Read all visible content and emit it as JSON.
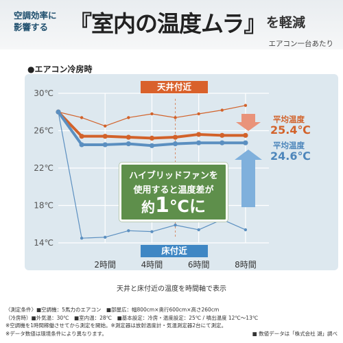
{
  "header": {
    "intro_line1": "空調効率に",
    "intro_line2": "影響する",
    "headline": "『室内の温度ムラ』",
    "headline_suffix": "を軽減",
    "unit_note": "エアコン一台あたり"
  },
  "section_title": "●エアコン冷房時",
  "chart_data": {
    "type": "line",
    "y_unit": "℃",
    "ylim": [
      14,
      30
    ],
    "y_ticks": [
      "30℃",
      "26℃",
      "22℃",
      "18℃",
      "14℃"
    ],
    "y_tick_values": [
      30,
      26,
      22,
      18,
      14
    ],
    "x_ticks": [
      "2時間",
      "4時間",
      "6時間",
      "8時間"
    ],
    "x_tick_values": [
      2,
      4,
      6,
      8
    ],
    "xlim": [
      0,
      9
    ],
    "grid": true,
    "series": [
      {
        "label": "天井付近 ハイブリッドファン無し",
        "color": "#d2622a",
        "style": "thin",
        "x": [
          0,
          1,
          2,
          3,
          4,
          5,
          6,
          7,
          8
        ],
        "values": [
          28.0,
          27.4,
          26.5,
          27.4,
          27.8,
          27.4,
          27.8,
          28.2,
          28.7
        ]
      },
      {
        "label": "天井付近 ハイブリッドファン使用",
        "color": "#d2622a",
        "style": "thick",
        "x": [
          0,
          1,
          2,
          3,
          4,
          5,
          6,
          7,
          8
        ],
        "values": [
          28.0,
          25.4,
          25.4,
          25.3,
          25.2,
          25.3,
          25.6,
          25.5,
          25.5
        ]
      },
      {
        "label": "床付近 ハイブリッドファン使用",
        "color": "#5b8fc0",
        "style": "thick",
        "x": [
          0,
          1,
          2,
          3,
          4,
          5,
          6,
          7,
          8
        ],
        "values": [
          28.0,
          24.5,
          24.5,
          24.6,
          24.4,
          24.6,
          24.7,
          24.7,
          24.7
        ]
      },
      {
        "label": "床付近 ハイブリッドファン無し",
        "color": "#5b8fc0",
        "style": "thin",
        "x": [
          0,
          1,
          2,
          3,
          4,
          5,
          6,
          7,
          8
        ],
        "values": [
          28.0,
          14.5,
          14.6,
          15.3,
          15.2,
          15.9,
          15.4,
          16.5,
          15.4
        ]
      }
    ],
    "labels": {
      "ceiling": "天井付近",
      "floor": "床付近",
      "avg_label": "平均温度",
      "ceiling_avg": "25.4℃",
      "floor_avg": "24.6℃"
    },
    "callout": {
      "line1": "ハイブリッドファンを",
      "line2": "使用すると温度差が",
      "line3_prefix": "約",
      "line3_value": "1",
      "line3_suffix": "℃に"
    }
  },
  "caption": "天井と床付近の温度を時間軸で表示",
  "conditions": {
    "line1": "〈測定条件〉■空調機：5馬力のエアコン　■部屋広：幅800cm×奥行600cm×高さ260cm",
    "line2": "（冷房時）■外気温：30℃　■室内温：28℃　■基本設定：冷房・温度設定：25℃ / 噴出温度 12℃〜13℃",
    "line3": "※空調機を1時間稼働させてから測定を開始。※測定器は放射温度計・気温測定器2台にて測定。",
    "line4": "※データ数値は環境条件により異なります。"
  },
  "credit": "■ 数値データは「株式会社 湖」調べ"
}
